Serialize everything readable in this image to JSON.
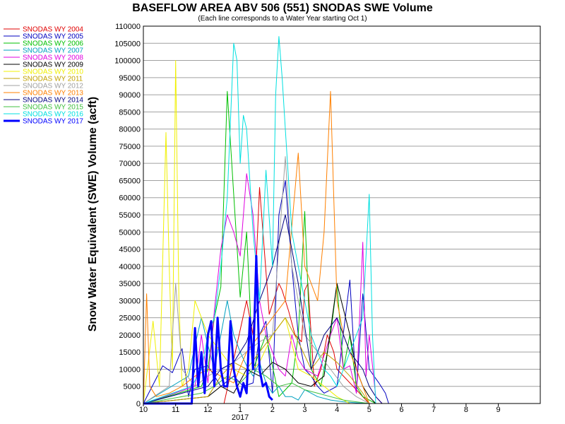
{
  "chart_data": {
    "type": "line",
    "title": "BASEFLOW AREA ABV 506 (551) SNODAS SWE Volume",
    "subtitle": "(Each line corresponds to a Water Year starting Oct 1)",
    "ylabel": "Snow Water Equivalent (SWE) Volume (acft)",
    "xlabel": "",
    "ylim": [
      0,
      110000
    ],
    "ytick_step": 5000,
    "xlim": [
      10,
      22.3
    ],
    "x_ticks": [
      {
        "value": 10,
        "label": "10"
      },
      {
        "value": 11,
        "label": "11"
      },
      {
        "value": 12,
        "label": "12"
      },
      {
        "value": 13,
        "label": "1"
      },
      {
        "value": 14,
        "label": "2"
      },
      {
        "value": 15,
        "label": "3"
      },
      {
        "value": 16,
        "label": "4"
      },
      {
        "value": 17,
        "label": "5"
      },
      {
        "value": 18,
        "label": "6"
      },
      {
        "value": 19,
        "label": "7"
      },
      {
        "value": 20,
        "label": "8"
      },
      {
        "value": 21,
        "label": "9"
      }
    ],
    "year_label": {
      "value": 13,
      "label": "2017"
    },
    "grid": true,
    "legend_position": "left",
    "series": [
      {
        "name": "SNODAS WY 2004",
        "color": "#e00000",
        "width": 1,
        "x": [
          10,
          12.5,
          13.2,
          13.4,
          13.6,
          13.9,
          14.2,
          14.3,
          14.5,
          14.7,
          14.9,
          15.0,
          15.1,
          15.3,
          15.5,
          15.7,
          15.9,
          16.0,
          16.5,
          17.0
        ],
        "y": [
          0,
          0,
          30000,
          20000,
          63000,
          26000,
          35000,
          33000,
          27000,
          20000,
          18000,
          33000,
          35000,
          5000,
          10000,
          20000,
          15000,
          10000,
          5000,
          0
        ]
      },
      {
        "name": "SNODAS WY 2005",
        "color": "#0000c0",
        "width": 1,
        "x": [
          10,
          10.6,
          10.9,
          11.2,
          11.4,
          11.6,
          12.0,
          12.4,
          12.8,
          13.1,
          13.4,
          13.6,
          13.8,
          14.0,
          14.2,
          14.4,
          14.6,
          14.8,
          15.0,
          15.2,
          15.4,
          15.6,
          16.0,
          16.4,
          16.6,
          16.8,
          17.0,
          17.3,
          17.5,
          17.6
        ],
        "x_note": "",
        "y": [
          0,
          11000,
          9000,
          16000,
          2000,
          10000,
          11000,
          5000,
          8000,
          5000,
          6000,
          20000,
          24000,
          3000,
          55000,
          65000,
          40000,
          20000,
          10000,
          8000,
          5000,
          3000,
          5000,
          36000,
          3000,
          32000,
          10000,
          6000,
          3000,
          0
        ]
      },
      {
        "name": "SNODAS WY 2006",
        "color": "#00c000",
        "width": 1,
        "x": [
          10,
          11.8,
          12.0,
          12.2,
          12.4,
          12.6,
          12.8,
          13.0,
          13.2,
          13.4,
          13.8,
          14.2,
          14.4,
          14.6,
          14.8,
          15.0,
          15.2,
          15.5,
          15.8,
          16.0,
          16.2,
          16.4,
          16.6,
          16.8,
          17.0,
          17.2
        ],
        "y": [
          0,
          5000,
          10000,
          25000,
          34000,
          91000,
          61000,
          31000,
          50000,
          10000,
          20000,
          2000,
          4000,
          6000,
          20000,
          56000,
          10000,
          5000,
          20000,
          35000,
          10000,
          20000,
          5000,
          2000,
          1000,
          0
        ]
      },
      {
        "name": "SNODAS WY 2007",
        "color": "#00a0c0",
        "width": 1,
        "x": [
          10,
          11.4,
          11.6,
          11.8,
          12.0,
          12.2,
          12.4,
          12.6,
          12.8,
          13.0,
          13.2,
          13.4,
          13.6,
          13.8,
          14.0,
          14.2,
          14.4,
          14.6,
          14.8,
          15.0,
          15.4,
          15.8,
          16.2,
          16.6,
          17.0
        ],
        "y": [
          0,
          8000,
          17000,
          25000,
          17000,
          10000,
          20000,
          30000,
          20000,
          15000,
          11000,
          8000,
          12000,
          6000,
          3000,
          5000,
          2000,
          2000,
          1000,
          4000,
          2000,
          1000,
          500,
          200,
          0
        ]
      },
      {
        "name": "SNODAS WY 2008",
        "color": "#e000e0",
        "width": 1,
        "x": [
          10,
          11.6,
          11.8,
          12.0,
          12.2,
          12.4,
          12.6,
          12.8,
          13.0,
          13.2,
          13.4,
          13.6,
          13.8,
          14.0,
          14.2,
          14.4,
          14.6,
          14.8,
          15.0,
          15.4,
          15.8,
          16.0,
          16.2,
          16.4,
          16.6,
          16.8,
          16.9,
          17.0,
          17.2,
          17.4
        ],
        "y": [
          0,
          5000,
          20000,
          6000,
          27000,
          45000,
          55000,
          50000,
          43000,
          67000,
          55000,
          30000,
          20000,
          15000,
          10000,
          8000,
          20000,
          13000,
          10000,
          8000,
          20000,
          25000,
          10000,
          11000,
          3000,
          47000,
          8000,
          20000,
          2000,
          0
        ]
      },
      {
        "name": "SNODAS WY 2009",
        "color": "#000000",
        "width": 1,
        "x": [
          10,
          12.0,
          12.4,
          12.8,
          13.2,
          13.6,
          14.0,
          14.4,
          14.8,
          15.2,
          15.6,
          16.0,
          16.4,
          16.6,
          16.8,
          17.0,
          17.2
        ],
        "y": [
          0,
          2000,
          5000,
          3000,
          10000,
          8000,
          12000,
          10000,
          6000,
          5000,
          8000,
          35000,
          20000,
          10000,
          5000,
          2000,
          0
        ]
      },
      {
        "name": "SNODAS WY 2010",
        "color": "#f0f000",
        "width": 1,
        "x": [
          10,
          10.3,
          10.5,
          10.7,
          10.8,
          10.9,
          11.0,
          11.1,
          11.2,
          11.4,
          11.6,
          12.0,
          12.4,
          12.8,
          13.2,
          13.6,
          14.0,
          14.4,
          14.8,
          15.2,
          15.6,
          16.0,
          16.4
        ],
        "y": [
          0,
          24000,
          5000,
          79000,
          40000,
          10000,
          100000,
          30000,
          5000,
          10000,
          30000,
          20000,
          15000,
          10000,
          8000,
          12000,
          20000,
          25000,
          10000,
          8000,
          5000,
          2000,
          0
        ]
      },
      {
        "name": "SNODAS WY 2011",
        "color": "#c0a000",
        "width": 1,
        "x": [
          10,
          12.0,
          12.4,
          12.8,
          13.2,
          13.6,
          14.0,
          14.4,
          14.8,
          15.2,
          15.6,
          16.0,
          16.4,
          16.8,
          17.0
        ],
        "y": [
          0,
          2000,
          8000,
          12000,
          10000,
          15000,
          20000,
          25000,
          18000,
          10000,
          15000,
          12000,
          8000,
          3000,
          0
        ]
      },
      {
        "name": "SNODAS WY 2012",
        "color": "#a0a0a0",
        "width": 1,
        "x": [
          10,
          10.8,
          11.0,
          11.2,
          11.6,
          12.0,
          12.4,
          12.8,
          13.2,
          13.6,
          14.0,
          14.4,
          14.6,
          14.8,
          15.0,
          15.4,
          15.8,
          16.2,
          16.6,
          17.0
        ],
        "y": [
          0,
          5000,
          35000,
          10000,
          5000,
          8000,
          10000,
          12000,
          15000,
          18000,
          20000,
          72000,
          40000,
          30000,
          20000,
          15000,
          10000,
          5000,
          2000,
          0
        ]
      },
      {
        "name": "SNODAS WY 2013",
        "color": "#ff8000",
        "width": 1,
        "x": [
          10,
          10.1,
          10.2,
          10.4,
          10.8,
          11.2,
          11.6,
          12.0,
          12.4,
          12.8,
          13.2,
          13.6,
          14.0,
          14.4,
          14.8,
          15.0,
          15.4,
          15.6,
          15.8,
          15.9,
          16.0,
          16.2,
          16.6,
          17.0
        ],
        "y": [
          0,
          32000,
          5000,
          2000,
          3000,
          5000,
          8000,
          10000,
          8000,
          6000,
          15000,
          20000,
          25000,
          30000,
          73000,
          40000,
          30000,
          50000,
          91000,
          60000,
          30000,
          20000,
          10000,
          0
        ]
      },
      {
        "name": "SNODAS WY 2014",
        "color": "#000080",
        "width": 1,
        "x": [
          10,
          12.0,
          12.4,
          12.8,
          13.2,
          13.6,
          14.0,
          14.4,
          14.8,
          15.2,
          15.6,
          16.0,
          16.4,
          16.8,
          17.0,
          17.2,
          17.4
        ],
        "y": [
          0,
          5000,
          10000,
          12000,
          18000,
          30000,
          40000,
          55000,
          35000,
          10000,
          20000,
          25000,
          15000,
          10000,
          5000,
          2000,
          0
        ]
      },
      {
        "name": "SNODAS WY 2015",
        "color": "#40c040",
        "width": 1,
        "x": [
          10,
          11.8,
          12.2,
          12.6,
          13.0,
          13.4,
          13.8,
          14.2,
          14.6,
          15.0,
          15.4,
          15.8,
          16.2,
          16.6,
          17.0
        ],
        "y": [
          0,
          3000,
          5000,
          8000,
          6000,
          10000,
          8000,
          5000,
          6000,
          4000,
          3000,
          2000,
          1000,
          500,
          0
        ]
      },
      {
        "name": "SNODAS WY 2016",
        "color": "#00e0e0",
        "width": 1,
        "x": [
          10,
          11.5,
          11.8,
          12.0,
          12.2,
          12.4,
          12.6,
          12.8,
          12.9,
          13.0,
          13.1,
          13.2,
          13.4,
          13.6,
          13.8,
          14.0,
          14.1,
          14.2,
          14.3,
          14.4,
          14.6,
          14.8,
          15.0,
          15.2,
          15.4,
          15.6,
          15.8,
          16.0,
          16.2,
          16.4,
          16.6,
          16.8,
          17.0,
          17.1,
          17.2
        ],
        "y": [
          0,
          5000,
          10000,
          20000,
          25000,
          40000,
          60000,
          105000,
          100000,
          70000,
          84000,
          80000,
          50000,
          30000,
          68000,
          40000,
          90000,
          107000,
          95000,
          80000,
          50000,
          40000,
          30000,
          20000,
          15000,
          10000,
          8000,
          5000,
          10000,
          15000,
          20000,
          25000,
          61000,
          20000,
          0
        ]
      },
      {
        "name": "SNODAS WY 2017",
        "color": "#0000ff",
        "width": 3,
        "x": [
          10,
          11.5,
          11.6,
          11.7,
          11.8,
          11.9,
          12.0,
          12.1,
          12.2,
          12.3,
          12.4,
          12.5,
          12.6,
          12.7,
          12.8,
          12.9,
          13.0,
          13.1,
          13.2,
          13.3,
          13.4,
          13.5,
          13.6,
          13.7,
          13.8,
          13.9,
          14.0
        ],
        "y": [
          0,
          0,
          22000,
          5000,
          15000,
          3000,
          20000,
          24000,
          5000,
          25000,
          10000,
          5000,
          5000,
          24000,
          10000,
          5000,
          2000,
          6000,
          3000,
          25000,
          10000,
          43000,
          10000,
          5000,
          6000,
          2000,
          1000
        ]
      }
    ]
  }
}
